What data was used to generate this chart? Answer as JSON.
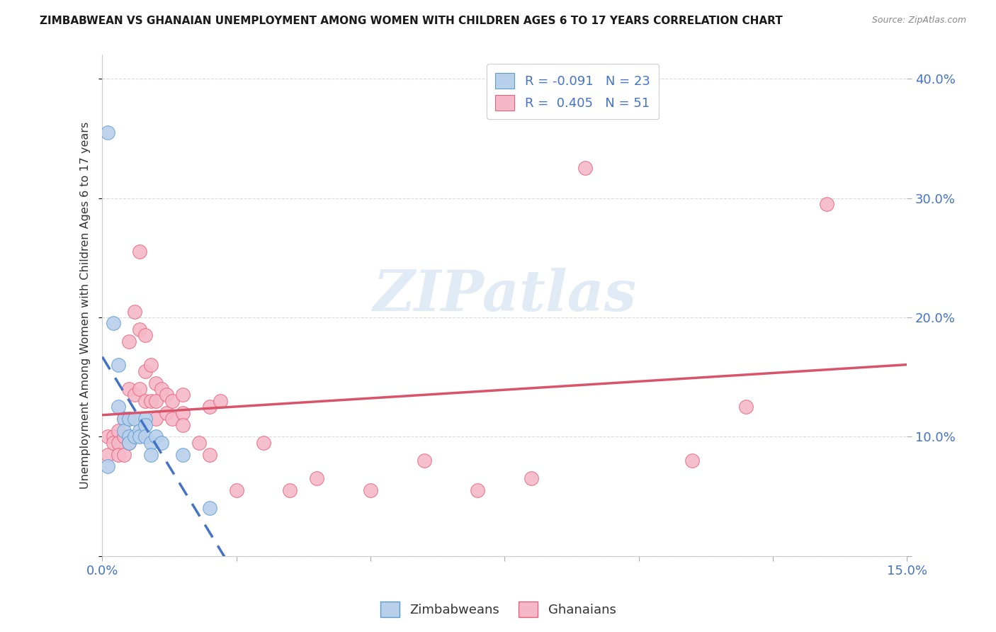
{
  "title": "ZIMBABWEAN VS GHANAIAN UNEMPLOYMENT AMONG WOMEN WITH CHILDREN AGES 6 TO 17 YEARS CORRELATION CHART",
  "source": "Source: ZipAtlas.com",
  "ylabel": "Unemployment Among Women with Children Ages 6 to 17 years",
  "xlim": [
    0.0,
    0.15
  ],
  "ylim": [
    0.0,
    0.42
  ],
  "xticks": [
    0.0,
    0.025,
    0.05,
    0.075,
    0.1,
    0.125,
    0.15
  ],
  "xticklabels": [
    "0.0%",
    "",
    "",
    "",
    "",
    "",
    "15.0%"
  ],
  "yticks": [
    0.0,
    0.1,
    0.2,
    0.3,
    0.4
  ],
  "yticklabels": [
    "",
    "10.0%",
    "20.0%",
    "30.0%",
    "40.0%"
  ],
  "watermark": "ZIPatlas",
  "zimbabwe_color": "#b8d0ea",
  "ghana_color": "#f5b8c8",
  "zimbabwe_edge_color": "#5b9bd5",
  "ghana_edge_color": "#e8607a",
  "zimbabwe_trend_color": "#4472c4",
  "ghana_trend_color": "#d9546a",
  "tick_color": "#4472c4",
  "grid_color": "#d0d0d0",
  "zimbabwe_x": [
    0.001,
    0.001,
    0.002,
    0.003,
    0.003,
    0.004,
    0.004,
    0.005,
    0.005,
    0.005,
    0.006,
    0.006,
    0.007,
    0.007,
    0.008,
    0.008,
    0.008,
    0.009,
    0.009,
    0.01,
    0.011,
    0.015,
    0.02
  ],
  "zimbabwe_y": [
    0.355,
    0.075,
    0.195,
    0.16,
    0.125,
    0.115,
    0.105,
    0.115,
    0.1,
    0.095,
    0.115,
    0.1,
    0.105,
    0.1,
    0.115,
    0.11,
    0.1,
    0.095,
    0.085,
    0.1,
    0.095,
    0.085,
    0.04
  ],
  "ghana_x": [
    0.001,
    0.001,
    0.002,
    0.002,
    0.003,
    0.003,
    0.003,
    0.004,
    0.004,
    0.004,
    0.005,
    0.005,
    0.005,
    0.005,
    0.006,
    0.006,
    0.007,
    0.007,
    0.007,
    0.008,
    0.008,
    0.008,
    0.009,
    0.009,
    0.01,
    0.01,
    0.01,
    0.011,
    0.012,
    0.012,
    0.013,
    0.013,
    0.015,
    0.015,
    0.015,
    0.018,
    0.02,
    0.02,
    0.022,
    0.025,
    0.03,
    0.035,
    0.04,
    0.05,
    0.06,
    0.07,
    0.08,
    0.09,
    0.11,
    0.12,
    0.135
  ],
  "ghana_y": [
    0.1,
    0.085,
    0.1,
    0.095,
    0.105,
    0.095,
    0.085,
    0.115,
    0.1,
    0.085,
    0.18,
    0.14,
    0.115,
    0.095,
    0.205,
    0.135,
    0.255,
    0.19,
    0.14,
    0.185,
    0.155,
    0.13,
    0.16,
    0.13,
    0.145,
    0.13,
    0.115,
    0.14,
    0.135,
    0.12,
    0.13,
    0.115,
    0.135,
    0.12,
    0.11,
    0.095,
    0.125,
    0.085,
    0.13,
    0.055,
    0.095,
    0.055,
    0.065,
    0.055,
    0.08,
    0.055,
    0.065,
    0.325,
    0.08,
    0.125,
    0.295
  ]
}
